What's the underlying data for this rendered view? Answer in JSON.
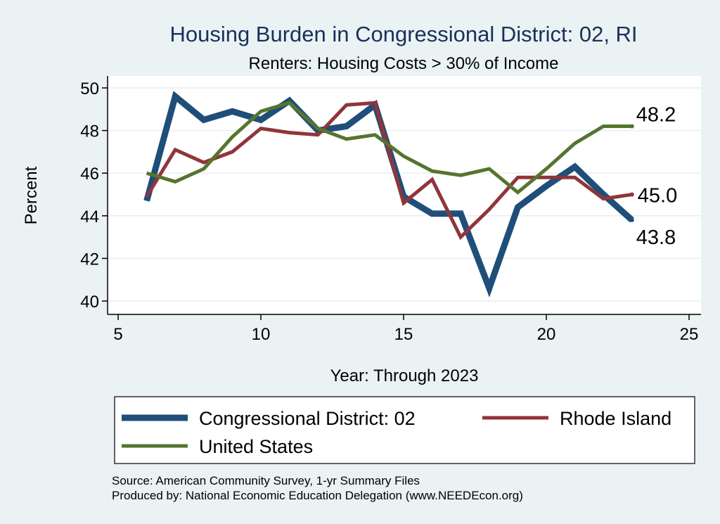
{
  "chart_data": {
    "type": "line",
    "title": "Housing Burden in Congressional District:  02, RI",
    "subtitle": "Renters: Housing Costs > 30% of Income",
    "xlabel": "Year: Through 2023",
    "ylabel": "Percent",
    "xlim": [
      5,
      25
    ],
    "ylim": [
      40,
      50
    ],
    "x_ticks": [
      "5",
      "10",
      "15",
      "20",
      "25"
    ],
    "y_ticks": [
      "40",
      "42",
      "44",
      "46",
      "48",
      "50"
    ],
    "grid": true,
    "series": [
      {
        "name": "Congressional District:  02",
        "color": "#1f4e79",
        "x": [
          6,
          7,
          8,
          9,
          10,
          11,
          12,
          13,
          14,
          15,
          16,
          17,
          18,
          19,
          20,
          21,
          22,
          23
        ],
        "values": [
          44.7,
          49.6,
          48.5,
          48.9,
          48.5,
          49.4,
          48.0,
          48.2,
          49.2,
          44.9,
          44.1,
          44.1,
          40.6,
          44.4,
          45.4,
          46.3,
          45.0,
          43.8
        ],
        "end_label": "43.8"
      },
      {
        "name": "Rhode Island",
        "color": "#90353b",
        "x": [
          6,
          7,
          8,
          9,
          10,
          11,
          12,
          13,
          14,
          15,
          16,
          17,
          18,
          19,
          20,
          21,
          22,
          23
        ],
        "values": [
          44.9,
          47.1,
          46.5,
          47.0,
          48.1,
          47.9,
          47.8,
          49.2,
          49.3,
          44.6,
          45.7,
          43.0,
          44.3,
          45.8,
          45.8,
          45.8,
          44.8,
          45.0
        ],
        "end_label": "45.0"
      },
      {
        "name": "United States",
        "color": "#55752f",
        "x": [
          6,
          7,
          8,
          9,
          10,
          11,
          12,
          13,
          14,
          15,
          16,
          17,
          18,
          19,
          20,
          21,
          22,
          23
        ],
        "values": [
          46.0,
          45.6,
          46.2,
          47.7,
          48.9,
          49.3,
          48.1,
          47.6,
          47.8,
          46.8,
          46.1,
          45.9,
          46.2,
          45.1,
          46.2,
          47.4,
          48.2,
          48.2
        ],
        "end_label": "48.2"
      }
    ],
    "legend": {
      "position": "bottom",
      "items": [
        "Congressional District:  02",
        "Rhode Island",
        "United States"
      ]
    }
  },
  "source": {
    "line1": "Source: American Community Survey, 1-yr Summary Files",
    "line2": "Produced by: National Economic Education Delegation (www.NEEDEcon.org)"
  }
}
